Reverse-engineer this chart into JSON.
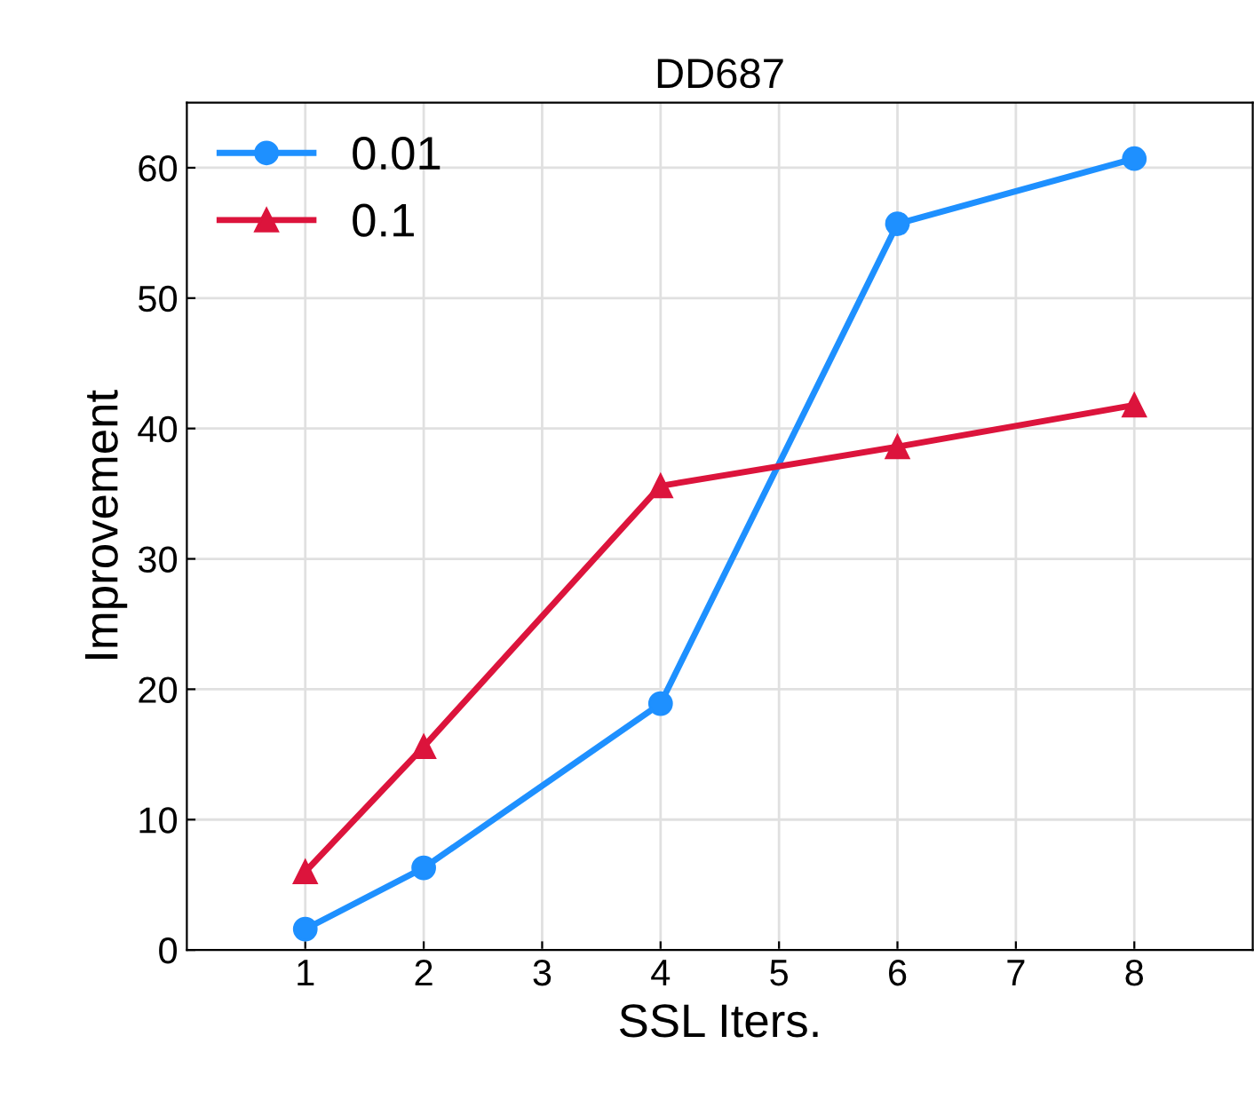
{
  "chart_data": {
    "type": "line",
    "title": "DD687",
    "xlabel": "SSL Iters.",
    "ylabel": "Improvement",
    "x": [
      1,
      2,
      4,
      6,
      8
    ],
    "series": [
      {
        "name": "0.01",
        "color": "#1e90ff",
        "marker": "circle",
        "values": [
          1.6,
          6.3,
          18.9,
          55.7,
          60.7
        ]
      },
      {
        "name": "0.1",
        "color": "#dc143c",
        "marker": "triangle",
        "values": [
          6.0,
          15.6,
          35.6,
          38.6,
          41.8
        ]
      }
    ],
    "xlim": [
      0,
      9
    ],
    "xticks": [
      1,
      2,
      3,
      4,
      5,
      6,
      7,
      8
    ],
    "ylim": [
      0,
      65
    ],
    "yticks": [
      0,
      10,
      20,
      30,
      40,
      50,
      60
    ],
    "grid": true,
    "legend": "top left",
    "line_style": "solid"
  }
}
